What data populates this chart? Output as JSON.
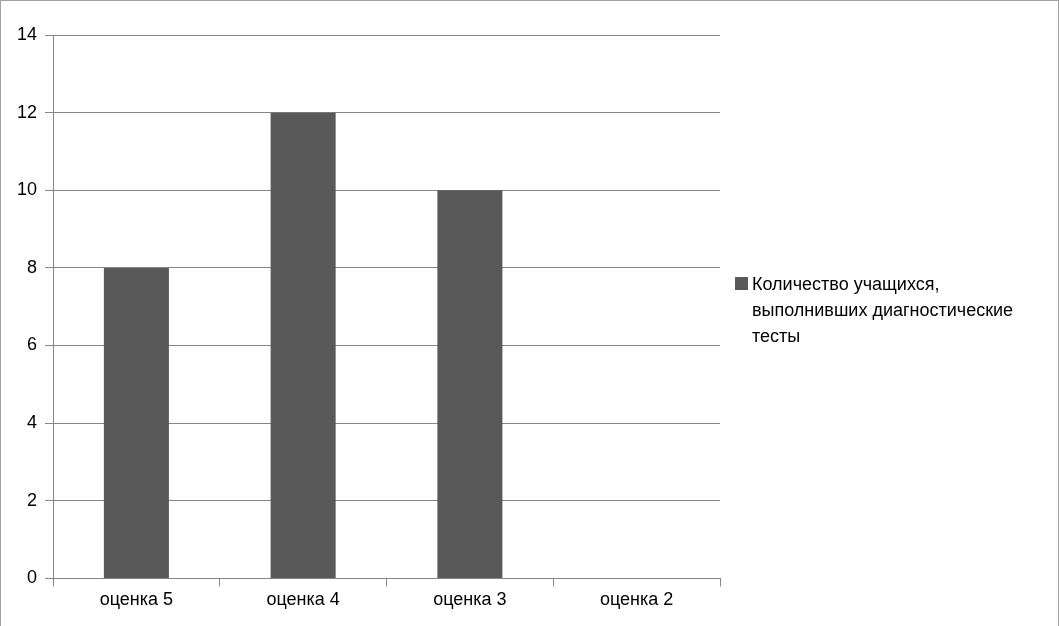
{
  "chart_data": {
    "type": "bar",
    "categories": [
      "оценка 5",
      "оценка 4",
      "оценка 3",
      "оценка 2"
    ],
    "series": [
      {
        "name": "Количество учащихся, выполнивших диагностические тесты",
        "color": "#595959",
        "values": [
          8,
          12,
          10,
          0
        ]
      }
    ],
    "ylim": [
      0,
      14
    ],
    "yticks": [
      0,
      2,
      4,
      6,
      8,
      10,
      12,
      14
    ],
    "grid": "y",
    "legend": "right"
  }
}
